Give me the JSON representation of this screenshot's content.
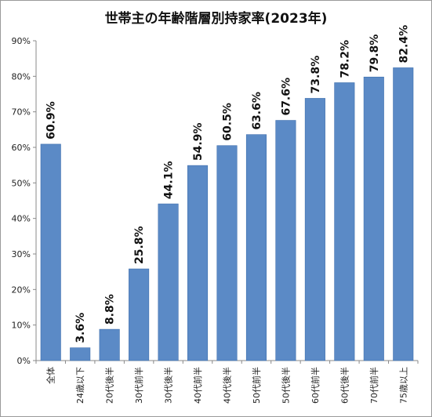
{
  "chart_data": {
    "type": "bar",
    "title": "世帯主の年齢階層別持家率(2023年)",
    "categories": [
      "全体",
      "24歳以下",
      "20代後半",
      "30代前半",
      "30代後半",
      "40代前半",
      "40代後半",
      "50代前半",
      "50代後半",
      "60代前半",
      "60代後半",
      "70代前半",
      "75歳以上"
    ],
    "values": [
      60.9,
      3.6,
      8.8,
      25.8,
      44.1,
      54.9,
      60.5,
      63.6,
      67.6,
      73.8,
      78.2,
      79.8,
      82.4
    ],
    "data_labels": [
      "60.9%",
      "3.6%",
      "8.8%",
      "25.8%",
      "44.1%",
      "54.9%",
      "60.5%",
      "63.6%",
      "67.6%",
      "73.8%",
      "78.2%",
      "79.8%",
      "82.4%"
    ],
    "ylim": [
      0,
      90
    ],
    "yticks": [
      "0%",
      "10%",
      "20%",
      "30%",
      "40%",
      "50%",
      "60%",
      "70%",
      "80%",
      "90%"
    ],
    "grid": false,
    "bar_color": "#5b8ac6",
    "bar_edge_color": "#3f6fae"
  }
}
